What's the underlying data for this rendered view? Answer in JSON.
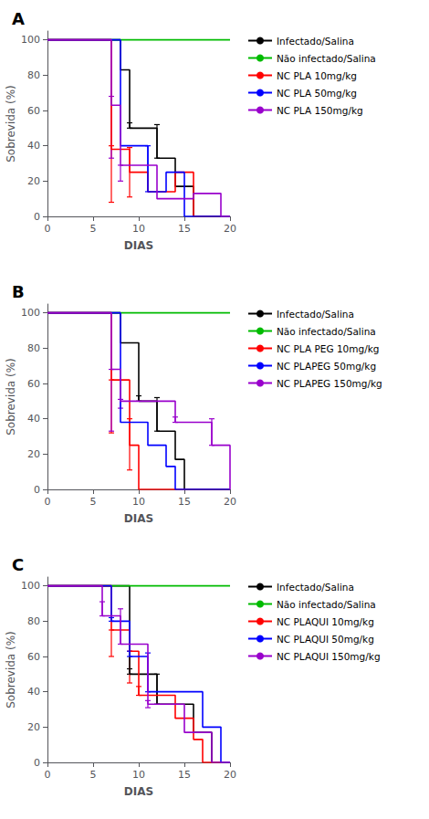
{
  "chart_data": [
    {
      "type": "line",
      "line_style": "step",
      "title": "A",
      "xlabel": "DIAS",
      "ylabel": "Sobrevida (%)",
      "xlim": [
        0,
        20
      ],
      "ylim": [
        0,
        105
      ],
      "xticks": [
        0,
        5,
        10,
        15,
        20
      ],
      "yticks": [
        0,
        20,
        40,
        60,
        80,
        100
      ],
      "grid": false,
      "legend": "right",
      "series": [
        {
          "name": "Infectado/Salina",
          "color": "#000000",
          "x": [
            0,
            8,
            9,
            12,
            14,
            16,
            20
          ],
          "values": [
            100,
            83,
            50,
            33,
            17,
            0,
            0
          ],
          "err_x": [
            9,
            12
          ],
          "err_y": [
            50,
            33
          ],
          "err_lo": [
            0,
            0
          ],
          "err_hi": [
            3,
            19
          ]
        },
        {
          "name": "Não infectado/Salina",
          "color": "#00bb00",
          "x": [
            0,
            20
          ],
          "values": [
            100,
            100
          ],
          "err_x": [],
          "err_y": [],
          "err_lo": [],
          "err_hi": []
        },
        {
          "name": "NC PLA 10mg/kg",
          "color": "#ff0000",
          "x": [
            0,
            7,
            9,
            11,
            14,
            16,
            20
          ],
          "values": [
            100,
            38,
            25,
            14,
            25,
            0,
            0
          ],
          "err_x": [
            7,
            9
          ],
          "err_y": [
            38,
            25
          ],
          "err_lo": [
            30,
            14
          ],
          "err_hi": [
            2,
            14
          ]
        },
        {
          "name": "NC PLA 50mg/kg",
          "color": "#0000ff",
          "x": [
            0,
            8,
            11,
            13,
            15,
            20
          ],
          "values": [
            100,
            40,
            14,
            25,
            0,
            0
          ],
          "err_x": [
            11
          ],
          "err_y": [
            14
          ],
          "err_lo": [
            0
          ],
          "err_hi": [
            26
          ]
        },
        {
          "name": "NC PLA 150mg/kg",
          "color": "#9900cc",
          "x": [
            0,
            7,
            8,
            12,
            16,
            19,
            20
          ],
          "values": [
            100,
            63,
            29,
            10,
            13,
            0,
            0
          ],
          "err_x": [
            7,
            8
          ],
          "err_y": [
            63,
            29
          ],
          "err_lo": [
            30,
            9
          ],
          "err_hi": [
            5,
            0
          ]
        }
      ]
    },
    {
      "type": "line",
      "line_style": "step",
      "title": "B",
      "xlabel": "DIAS",
      "ylabel": "Sobrevida (%)",
      "xlim": [
        0,
        20
      ],
      "ylim": [
        0,
        105
      ],
      "xticks": [
        0,
        5,
        10,
        15,
        20
      ],
      "yticks": [
        0,
        20,
        40,
        60,
        80,
        100
      ],
      "grid": false,
      "legend": "right",
      "series": [
        {
          "name": "Infectado/Salina",
          "color": "#000000",
          "x": [
            0,
            8,
            10,
            12,
            14,
            15,
            20
          ],
          "values": [
            100,
            83,
            50,
            33,
            17,
            0,
            0
          ],
          "err_x": [
            10,
            12
          ],
          "err_y": [
            50,
            33
          ],
          "err_lo": [
            0,
            0
          ],
          "err_hi": [
            3,
            19
          ]
        },
        {
          "name": "Não infectado/Salina",
          "color": "#00bb00",
          "x": [
            0,
            20
          ],
          "values": [
            100,
            100
          ],
          "err_x": [],
          "err_y": [],
          "err_lo": [],
          "err_hi": []
        },
        {
          "name": "NC PLA PEG 10mg/kg",
          "color": "#ff0000",
          "x": [
            0,
            7,
            9,
            10,
            20
          ],
          "values": [
            100,
            62,
            25,
            0,
            0
          ],
          "err_x": [
            7,
            9
          ],
          "err_y": [
            62,
            25
          ],
          "err_lo": [
            30,
            14
          ],
          "err_hi": [
            0,
            15
          ]
        },
        {
          "name": "NC PLAPEG 50mg/kg",
          "color": "#0000ff",
          "x": [
            0,
            8,
            11,
            13,
            14,
            20
          ],
          "values": [
            100,
            38,
            25,
            13,
            0,
            0
          ],
          "err_x": [],
          "err_y": [],
          "err_lo": [],
          "err_hi": []
        },
        {
          "name": "NC PLAPEG 150mg/kg",
          "color": "#9900cc",
          "x": [
            0,
            7,
            8,
            14,
            18,
            20,
            20
          ],
          "values": [
            100,
            68,
            50,
            38,
            25,
            13,
            0
          ],
          "err_x": [
            7,
            8,
            14,
            18
          ],
          "err_y": [
            68,
            50,
            38,
            25
          ],
          "err_lo": [
            35,
            4,
            0,
            0
          ],
          "err_hi": [
            0,
            1,
            3,
            15
          ]
        }
      ]
    },
    {
      "type": "line",
      "line_style": "step",
      "title": "C",
      "xlabel": "DIAS",
      "ylabel": "Sobrevida (%)",
      "xlim": [
        0,
        20
      ],
      "ylim": [
        0,
        105
      ],
      "xticks": [
        0,
        5,
        10,
        15,
        20
      ],
      "yticks": [
        0,
        20,
        40,
        60,
        80,
        100
      ],
      "grid": false,
      "legend": "right",
      "series": [
        {
          "name": "Infectado/Salina",
          "color": "#000000",
          "x": [
            0,
            9,
            11,
            12,
            16,
            18,
            20
          ],
          "values": [
            100,
            50,
            50,
            33,
            17,
            0,
            0
          ],
          "err_x": [
            9,
            12
          ],
          "err_y": [
            50,
            33
          ],
          "err_lo": [
            0,
            0
          ],
          "err_hi": [
            3,
            17
          ]
        },
        {
          "name": "Não infectado/Salina",
          "color": "#00bb00",
          "x": [
            0,
            20
          ],
          "values": [
            100,
            100
          ],
          "err_x": [],
          "err_y": [],
          "err_lo": [],
          "err_hi": []
        },
        {
          "name": "NC PLAQUI 10mg/kg",
          "color": "#ff0000",
          "x": [
            0,
            7,
            9,
            10,
            14,
            16,
            17,
            20
          ],
          "values": [
            100,
            75,
            63,
            38,
            25,
            13,
            0,
            0
          ],
          "err_x": [
            7,
            9,
            10
          ],
          "err_y": [
            75,
            63,
            38
          ],
          "err_lo": [
            15,
            18,
            0
          ],
          "err_hi": [
            0,
            0,
            5
          ]
        },
        {
          "name": "NC PLAQUI 50mg/kg",
          "color": "#0000ff",
          "x": [
            0,
            7,
            9,
            11,
            14,
            17,
            19,
            20
          ],
          "values": [
            100,
            80,
            60,
            40,
            40,
            20,
            0,
            0
          ],
          "err_x": [
            7,
            9,
            11
          ],
          "err_y": [
            80,
            60,
            40
          ],
          "err_lo": [
            0,
            0,
            0
          ],
          "err_hi": [
            2,
            3,
            22
          ]
        },
        {
          "name": "NC PLAQUI 150mg/kg",
          "color": "#9900cc",
          "x": [
            0,
            6,
            8,
            11,
            15,
            17,
            18,
            20
          ],
          "values": [
            100,
            83,
            67,
            33,
            17,
            17,
            0,
            0
          ],
          "err_x": [
            6,
            8,
            11
          ],
          "err_y": [
            83,
            67,
            33
          ],
          "err_lo": [
            0,
            0,
            2
          ],
          "err_hi": [
            8,
            20,
            2
          ]
        }
      ]
    }
  ]
}
